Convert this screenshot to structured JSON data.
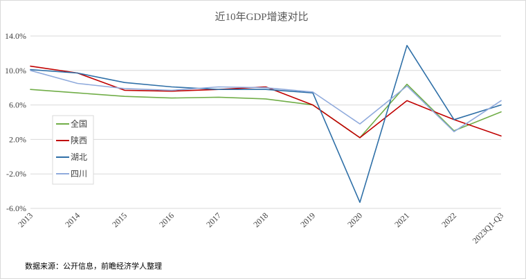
{
  "chart_data": {
    "type": "line",
    "title": "近10年GDP增速对比",
    "categories": [
      "2013",
      "2014",
      "2015",
      "2016",
      "2017",
      "2018",
      "2019",
      "2020",
      "2021",
      "2022",
      "2023Q1-Q3"
    ],
    "y_ticks": [
      "-6.0%",
      "-2.0%",
      "2.0%",
      "6.0%",
      "10.0%",
      "14.0%"
    ],
    "ylim": [
      -6,
      14
    ],
    "grid": true,
    "legend_position": "left",
    "series": [
      {
        "name": "全国",
        "color": "#70ad47",
        "values": [
          7.8,
          7.4,
          7.0,
          6.8,
          6.9,
          6.7,
          6.0,
          2.2,
          8.4,
          3.0,
          5.2
        ]
      },
      {
        "name": "陕西",
        "color": "#c00000",
        "values": [
          10.5,
          9.7,
          7.7,
          7.6,
          7.8,
          8.1,
          6.0,
          2.2,
          6.5,
          4.3,
          2.4
        ]
      },
      {
        "name": "湖北",
        "color": "#2e6fa7",
        "values": [
          10.1,
          9.7,
          8.6,
          8.1,
          7.8,
          7.8,
          7.4,
          -5.3,
          12.9,
          4.3,
          6.0
        ]
      },
      {
        "name": "四川",
        "color": "#8faadc",
        "values": [
          10.0,
          8.5,
          7.9,
          7.7,
          8.1,
          8.0,
          7.5,
          3.8,
          8.2,
          2.9,
          6.5
        ]
      }
    ]
  },
  "source_note": "数据来源：公开信息，前瞻经济学人整理"
}
